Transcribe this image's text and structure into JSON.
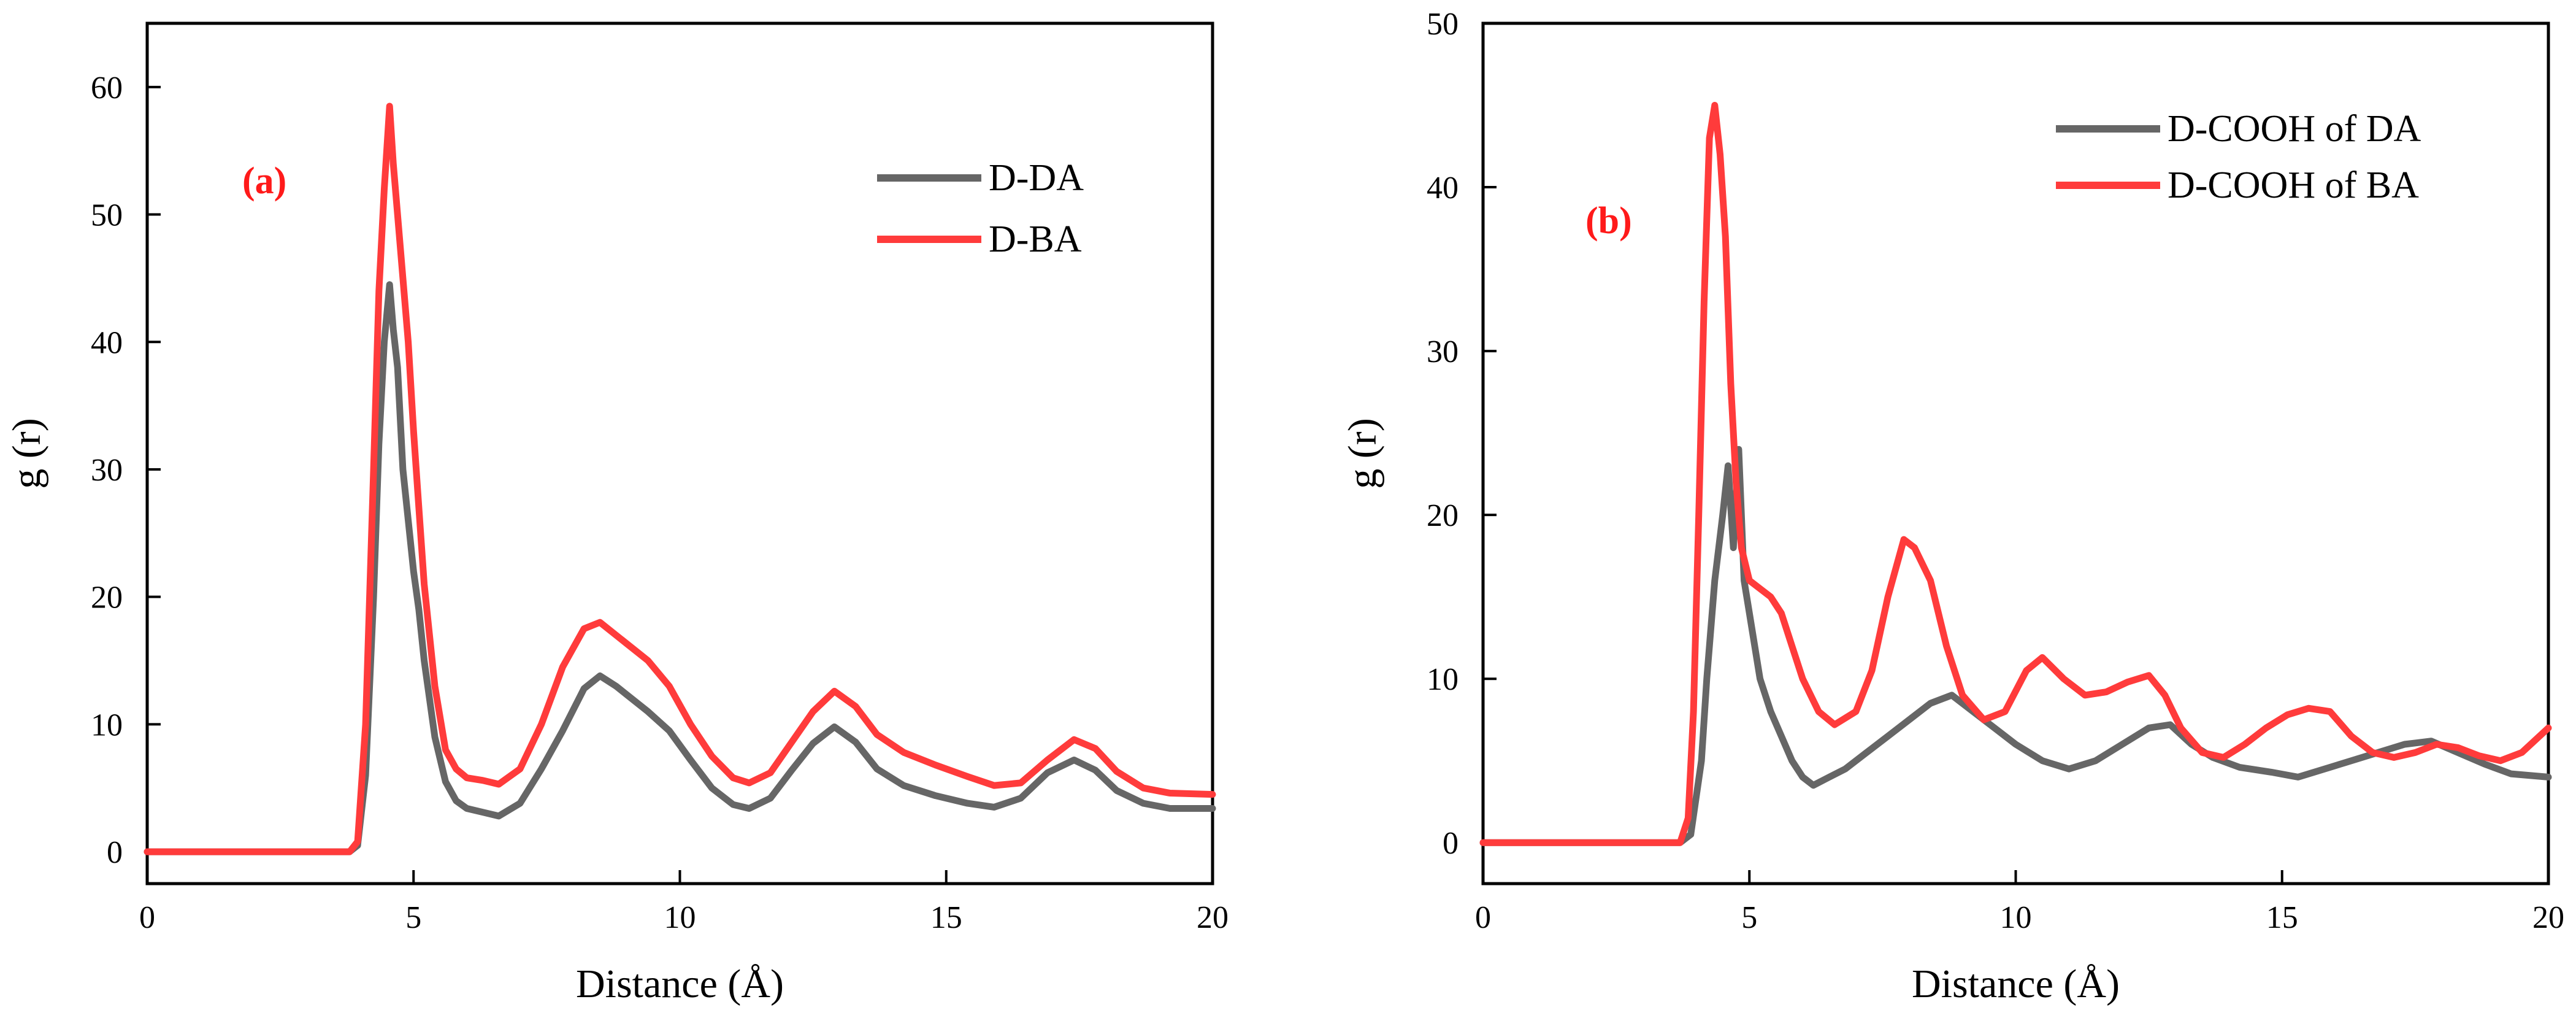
{
  "chart_data": [
    {
      "type": "line",
      "panel_label": "(a)",
      "xlabel": "Distance (Å)",
      "ylabel": "g (r)",
      "xlim": [
        0,
        20
      ],
      "ylim": [
        -2.5,
        65
      ],
      "xticks": [
        0,
        5,
        10,
        15,
        20
      ],
      "yticks": [
        0,
        10,
        20,
        30,
        40,
        50,
        60
      ],
      "grid": false,
      "legend_position": "top-right",
      "series": [
        {
          "name": "D-DA",
          "color": "#666666",
          "x": [
            0,
            3.8,
            3.95,
            4.1,
            4.25,
            4.35,
            4.45,
            4.55,
            4.62,
            4.7,
            4.8,
            4.9,
            5.0,
            5.1,
            5.2,
            5.4,
            5.6,
            5.8,
            6.0,
            6.3,
            6.6,
            7.0,
            7.4,
            7.8,
            8.2,
            8.5,
            8.8,
            9.1,
            9.4,
            9.8,
            10.2,
            10.6,
            11.0,
            11.3,
            11.7,
            12.1,
            12.5,
            12.9,
            13.3,
            13.7,
            14.2,
            14.8,
            15.4,
            15.9,
            16.4,
            16.9,
            17.4,
            17.8,
            18.2,
            18.7,
            19.2,
            20
          ],
          "values": [
            0,
            0,
            0.5,
            6,
            20,
            32,
            40,
            44.5,
            41,
            38,
            30,
            26,
            22,
            19,
            15,
            9,
            5.5,
            4,
            3.4,
            3.1,
            2.8,
            3.8,
            6.5,
            9.5,
            12.8,
            13.8,
            13,
            12,
            11,
            9.5,
            7.2,
            5,
            3.7,
            3.4,
            4.2,
            6.4,
            8.5,
            9.8,
            8.6,
            6.5,
            5.2,
            4.4,
            3.8,
            3.5,
            4.2,
            6.2,
            7.2,
            6.4,
            4.8,
            3.8,
            3.4,
            3.4
          ]
        },
        {
          "name": "D-BA",
          "color": "#ff3b3b",
          "x": [
            0,
            3.8,
            3.95,
            4.1,
            4.25,
            4.35,
            4.45,
            4.55,
            4.62,
            4.7,
            4.8,
            4.9,
            5.0,
            5.1,
            5.2,
            5.4,
            5.6,
            5.8,
            6.0,
            6.3,
            6.6,
            7.0,
            7.4,
            7.8,
            8.2,
            8.5,
            8.8,
            9.1,
            9.4,
            9.8,
            10.2,
            10.6,
            11.0,
            11.3,
            11.7,
            12.1,
            12.5,
            12.9,
            13.3,
            13.7,
            14.2,
            14.8,
            15.4,
            15.9,
            16.4,
            16.9,
            17.4,
            17.8,
            18.2,
            18.7,
            19.2,
            20
          ],
          "values": [
            0,
            0,
            0.8,
            10,
            30,
            44,
            52,
            58.5,
            54,
            50,
            45,
            40,
            33,
            27,
            21,
            13,
            8,
            6.5,
            5.8,
            5.6,
            5.3,
            6.5,
            10,
            14.5,
            17.5,
            18,
            17,
            16,
            15,
            13,
            10,
            7.5,
            5.8,
            5.4,
            6.2,
            8.6,
            11,
            12.6,
            11.4,
            9.2,
            7.8,
            6.8,
            5.9,
            5.2,
            5.4,
            7.2,
            8.8,
            8.1,
            6.3,
            5,
            4.6,
            4.5
          ]
        }
      ]
    },
    {
      "type": "line",
      "panel_label": "(b)",
      "xlabel": "Distance (Å)",
      "ylabel": "g (r)",
      "xlim": [
        0,
        20
      ],
      "ylim": [
        -2.5,
        50
      ],
      "xticks": [
        0,
        5,
        10,
        15,
        20
      ],
      "yticks": [
        0,
        10,
        20,
        30,
        40,
        50
      ],
      "grid": false,
      "legend_position": "top-right",
      "series": [
        {
          "name": "D-COOH of DA",
          "color": "#666666",
          "x": [
            0,
            3.7,
            3.9,
            4.1,
            4.2,
            4.35,
            4.5,
            4.6,
            4.7,
            4.8,
            4.9,
            5.0,
            5.2,
            5.4,
            5.6,
            5.8,
            6.0,
            6.2,
            6.5,
            6.8,
            7.2,
            7.6,
            8.0,
            8.4,
            8.8,
            9.2,
            9.6,
            10.0,
            10.5,
            11.0,
            11.5,
            12.0,
            12.5,
            12.9,
            13.3,
            13.7,
            14.2,
            14.8,
            15.3,
            15.8,
            16.3,
            16.8,
            17.3,
            17.8,
            18.3,
            18.8,
            19.3,
            20
          ],
          "values": [
            0,
            0,
            0.5,
            5,
            10,
            16,
            20,
            23,
            18,
            24,
            16,
            14,
            10,
            8,
            6.5,
            5,
            4,
            3.5,
            4,
            4.5,
            5.5,
            6.5,
            7.5,
            8.5,
            9,
            8,
            7,
            6,
            5,
            4.5,
            5,
            6,
            7,
            7.2,
            6,
            5.2,
            4.6,
            4.3,
            4,
            4.5,
            5,
            5.5,
            6,
            6.2,
            5.5,
            4.8,
            4.2,
            4
          ]
        },
        {
          "name": "D-COOH of BA",
          "color": "#ff3b3b",
          "x": [
            0,
            3.7,
            3.85,
            3.95,
            4.05,
            4.15,
            4.25,
            4.35,
            4.45,
            4.55,
            4.65,
            4.75,
            4.85,
            5.0,
            5.2,
            5.4,
            5.6,
            5.8,
            6.0,
            6.3,
            6.6,
            7.0,
            7.3,
            7.6,
            7.9,
            8.1,
            8.4,
            8.7,
            9.0,
            9.4,
            9.8,
            10.2,
            10.5,
            10.9,
            11.3,
            11.7,
            12.1,
            12.5,
            12.8,
            13.1,
            13.5,
            13.9,
            14.3,
            14.7,
            15.1,
            15.5,
            15.9,
            16.3,
            16.7,
            17.1,
            17.5,
            17.9,
            18.3,
            18.7,
            19.1,
            19.5,
            20
          ],
          "values": [
            0,
            0,
            1.5,
            8,
            20,
            33,
            43,
            45,
            42,
            37,
            28,
            22,
            18,
            16,
            15.5,
            15,
            14,
            12,
            10,
            8,
            7.2,
            8,
            10.5,
            15,
            18.5,
            18,
            16,
            12,
            9,
            7.5,
            8,
            10.5,
            11.3,
            10,
            9,
            9.2,
            9.8,
            10.2,
            9,
            7,
            5.5,
            5.2,
            6,
            7,
            7.8,
            8.2,
            8,
            6.5,
            5.5,
            5.2,
            5.5,
            6,
            5.8,
            5.3,
            5,
            5.5,
            7
          ]
        }
      ]
    }
  ]
}
